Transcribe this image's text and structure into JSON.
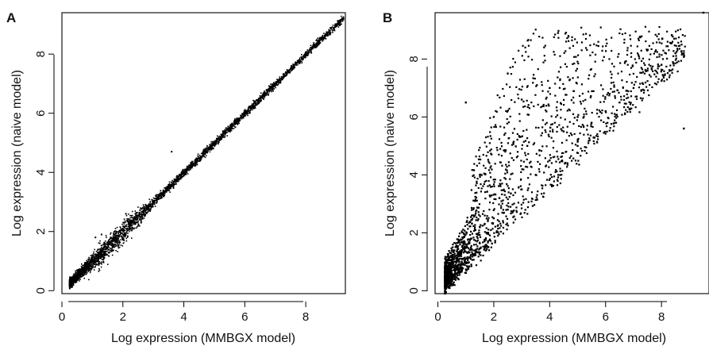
{
  "panels": [
    {
      "label": "A"
    },
    {
      "label": "B"
    }
  ],
  "chart_data": [
    {
      "type": "scatter",
      "panel": "A",
      "title": "",
      "xlabel": "Log expression (MMBGX model)",
      "ylabel": "Log expression (naive model)",
      "xlim": [
        0,
        9.3
      ],
      "ylim": [
        -0.1,
        9.4
      ],
      "xticks": [
        "0",
        "2",
        "4",
        "6",
        "8"
      ],
      "yticks": [
        "0",
        "2",
        "4",
        "6",
        "8"
      ],
      "grid": false,
      "legend": "none",
      "point_color": "#000000",
      "trend": {
        "description": "tight cloud along the identity line",
        "x": [
          0.3,
          1.0,
          2.0,
          3.0,
          4.0,
          5.0,
          6.0,
          7.0,
          8.0,
          9.2
        ],
        "y": [
          0.2,
          0.9,
          1.95,
          2.95,
          3.98,
          4.98,
          5.98,
          7.0,
          8.0,
          9.2
        ]
      },
      "sample_points": {
        "x": [
          0.3,
          0.6,
          0.9,
          1.0,
          1.2,
          1.5,
          1.8,
          2.0,
          2.2,
          2.5,
          2.8,
          3.1,
          3.5,
          4.0,
          4.5,
          5.0,
          5.5,
          6.0,
          6.5,
          7.0,
          7.5,
          8.0,
          8.5,
          9.0,
          9.2,
          1.3,
          2.1,
          2.6,
          1.1,
          3.6
        ],
        "y": [
          0.25,
          0.55,
          0.9,
          1.2,
          1.15,
          1.6,
          1.85,
          2.1,
          2.3,
          2.55,
          2.8,
          3.05,
          3.5,
          4.0,
          4.5,
          5.0,
          5.5,
          6.0,
          6.5,
          7.0,
          7.5,
          8.0,
          8.5,
          9.0,
          9.2,
          1.9,
          2.6,
          2.3,
          1.8,
          4.7
        ]
      }
    },
    {
      "type": "scatter",
      "panel": "B",
      "title": "",
      "xlabel": "Log expression (MMBGX model)",
      "ylabel": "Log expression (naive model)",
      "xlim": [
        -0.1,
        9.7
      ],
      "ylim": [
        -0.1,
        9.6
      ],
      "xticks": [
        "0",
        "2",
        "4",
        "6",
        "8"
      ],
      "yticks": [
        "0",
        "2",
        "4",
        "6",
        "8"
      ],
      "grid": false,
      "legend": "none",
      "point_color": "#000000",
      "sample_points": {
        "x": [
          0.3,
          0.5,
          0.6,
          0.8,
          0.9,
          1.0,
          1.2,
          1.5,
          1.8,
          2.0,
          2.2,
          2.5,
          3.0,
          3.2,
          3.5,
          4.0,
          4.3,
          4.5,
          5.0,
          5.5,
          6.0,
          6.5,
          7.0,
          7.5,
          8.0,
          8.5,
          8.8,
          9.5,
          1.0,
          2.0,
          2.5,
          3.0,
          1.5,
          4.0,
          5.0
        ],
        "y": [
          0.4,
          0.6,
          1.0,
          1.2,
          0.9,
          1.5,
          1.8,
          2.2,
          2.0,
          2.5,
          3.2,
          2.8,
          3.5,
          5.0,
          4.0,
          4.5,
          8.9,
          5.5,
          5.0,
          5.8,
          6.2,
          6.5,
          7.0,
          7.6,
          7.8,
          8.2,
          5.6,
          9.6,
          6.5,
          6.0,
          7.5,
          6.6,
          4.0,
          7.0,
          6.0
        ]
      }
    }
  ]
}
